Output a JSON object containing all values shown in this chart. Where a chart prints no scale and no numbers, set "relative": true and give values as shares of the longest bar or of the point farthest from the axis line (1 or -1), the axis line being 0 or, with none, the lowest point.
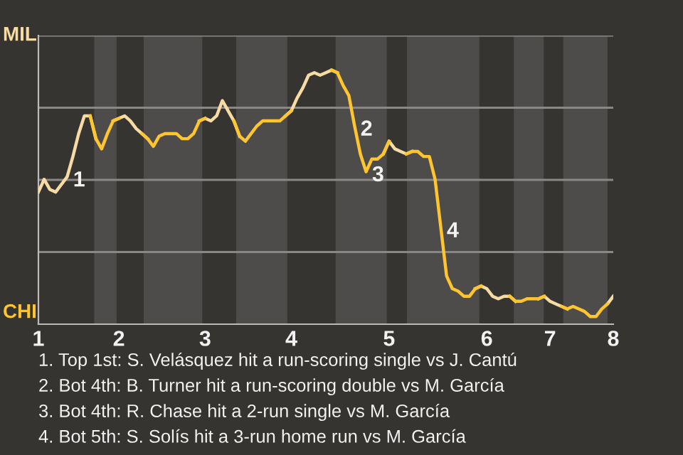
{
  "chart_data": {
    "type": "line",
    "relative": true,
    "categories": [
      "1",
      null,
      null,
      null,
      null,
      null,
      null,
      null,
      null,
      null,
      null,
      null,
      null,
      null,
      "2",
      null,
      null,
      null,
      null,
      null,
      null,
      null,
      null,
      null,
      null,
      null,
      null,
      null,
      null,
      "3",
      null,
      null,
      null,
      null,
      null,
      null,
      null,
      null,
      null,
      null,
      null,
      null,
      null,
      null,
      "4",
      null,
      null,
      null,
      null,
      null,
      null,
      null,
      null,
      null,
      null,
      null,
      null,
      null,
      null,
      null,
      null,
      "5",
      null,
      null,
      null,
      null,
      null,
      null,
      null,
      null,
      null,
      null,
      null,
      null,
      null,
      null,
      null,
      null,
      "6",
      null,
      null,
      null,
      null,
      null,
      null,
      null,
      null,
      null,
      null,
      "7",
      null,
      null,
      null,
      null,
      null,
      null,
      null,
      null,
      null,
      null,
      "8"
    ],
    "series": [
      {
        "color": "#f6dca4",
        "values": [
          0.52,
          0.57,
          0.53,
          0.52,
          0.55,
          0.58,
          0.66,
          0.75,
          0.82,
          0.82,
          0.73,
          null,
          null,
          0.8,
          0.81,
          0.82,
          0.8,
          0.77,
          0.75,
          0.73,
          null,
          null,
          null,
          null,
          null,
          null,
          null,
          null,
          0.8,
          0.81,
          0.8,
          0.82,
          0.88,
          0.84,
          0.8,
          0.74,
          null,
          null,
          null,
          null,
          null,
          null,
          null,
          0.82,
          0.84,
          0.89,
          0.93,
          0.98,
          0.99,
          0.98,
          0.99,
          1.0,
          0.99,
          null,
          null,
          null,
          null,
          null,
          null,
          null,
          0.67,
          0.72,
          0.69,
          0.68,
          0.67,
          0.68,
          null,
          null,
          null,
          null,
          null,
          null,
          null,
          null,
          null,
          null,
          0.14,
          0.15,
          0.14,
          0.11,
          0.1,
          0.11,
          0.11,
          0.09,
          null,
          null,
          null,
          0.1,
          0.11,
          0.09,
          0.08,
          0.07,
          0.06,
          null,
          null,
          null,
          null,
          null,
          null,
          0.08,
          0.11
        ]
      },
      {
        "color": "#ffc52f",
        "values": [
          null,
          null,
          null,
          null,
          null,
          null,
          null,
          null,
          null,
          0.82,
          0.73,
          0.69,
          0.75,
          0.8,
          0.81,
          null,
          null,
          null,
          0.75,
          0.73,
          0.7,
          0.74,
          0.75,
          0.75,
          0.75,
          0.73,
          0.73,
          0.75,
          0.8,
          0.81,
          null,
          null,
          null,
          null,
          0.8,
          0.74,
          0.72,
          0.75,
          0.78,
          0.8,
          0.8,
          0.8,
          0.8,
          0.82,
          0.84,
          null,
          null,
          null,
          null,
          null,
          null,
          1.0,
          0.99,
          0.94,
          0.9,
          0.78,
          0.67,
          0.6,
          0.65,
          0.65,
          0.67,
          0.72,
          null,
          null,
          0.67,
          0.68,
          0.68,
          0.66,
          0.66,
          0.57,
          0.38,
          0.19,
          0.14,
          0.13,
          0.11,
          0.11,
          0.14,
          0.15,
          null,
          null,
          null,
          null,
          0.11,
          0.09,
          0.09,
          0.1,
          0.1,
          0.1,
          0.11,
          null,
          null,
          0.07,
          0.06,
          0.07,
          0.06,
          0.05,
          0.03,
          0.03,
          0.06,
          0.08,
          null
        ]
      }
    ],
    "grid": "y",
    "marker": "none",
    "line_style": "solid",
    "annotations": [
      "MIL",
      "CHI",
      "1",
      "2",
      "3",
      "4",
      "1. Top 1st: S. Velásquez hit a run-scoring single vs J. Cantú",
      "2. Bot 4th: B. Turner hit a run-scoring double vs M. García",
      "3. Bot 4th: R. Chase hit a 2-run single vs M. García",
      "4. Bot 5th: S. Solís hit a 3-run home run vs M. García"
    ]
  }
}
